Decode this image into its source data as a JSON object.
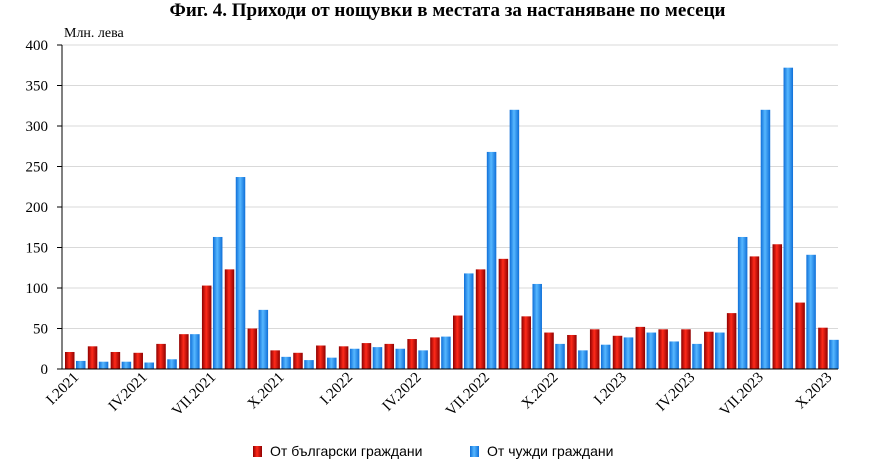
{
  "chart_data": {
    "type": "bar",
    "title": "Фиг. 4. Приходи от нощувки в местата за настаняване по месеци",
    "ylabel": "Млн. лева",
    "ylim": [
      0,
      400
    ],
    "yticks": [
      0,
      50,
      100,
      150,
      200,
      250,
      300,
      350,
      400
    ],
    "grid": true,
    "legend_position": "bottom",
    "categories": [
      "I.2021",
      "II.2021",
      "III.2021",
      "IV.2021",
      "V.2021",
      "VI.2021",
      "VII.2021",
      "VIII.2021",
      "IX.2021",
      "X.2021",
      "XI.2021",
      "XII.2021",
      "I.2022",
      "II.2022",
      "III.2022",
      "IV.2022",
      "V.2022",
      "VI.2022",
      "VII.2022",
      "VIII.2022",
      "IX.2022",
      "X.2022",
      "XI.2022",
      "XII.2022",
      "I.2023",
      "II.2023",
      "III.2023",
      "IV.2023",
      "V.2023",
      "VI.2023",
      "VII.2023",
      "VIII.2023",
      "IX.2023",
      "X.2023"
    ],
    "tick_labels": [
      "I.2021",
      "IV.2021",
      "VII.2021",
      "X.2021",
      "I.2022",
      "IV.2022",
      "VII.2022",
      "X.2022",
      "I.2023",
      "IV.2023",
      "VII.2023",
      "X.2023"
    ],
    "series": [
      {
        "name": "От български граждани",
        "color": "#c00000",
        "values": [
          21,
          28,
          21,
          20,
          31,
          43,
          103,
          123,
          50,
          23,
          20,
          29,
          28,
          32,
          31,
          37,
          39,
          66,
          123,
          136,
          65,
          45,
          42,
          49,
          41,
          52,
          49,
          49,
          46,
          69,
          139,
          154,
          82,
          51
        ]
      },
      {
        "name": "От чужди граждани",
        "color": "#1f8fff",
        "values": [
          10,
          9,
          9,
          8,
          12,
          43,
          163,
          237,
          73,
          15,
          11,
          14,
          25,
          27,
          25,
          23,
          40,
          118,
          268,
          320,
          105,
          31,
          23,
          30,
          39,
          45,
          34,
          31,
          45,
          163,
          320,
          372,
          141,
          36
        ]
      }
    ]
  }
}
